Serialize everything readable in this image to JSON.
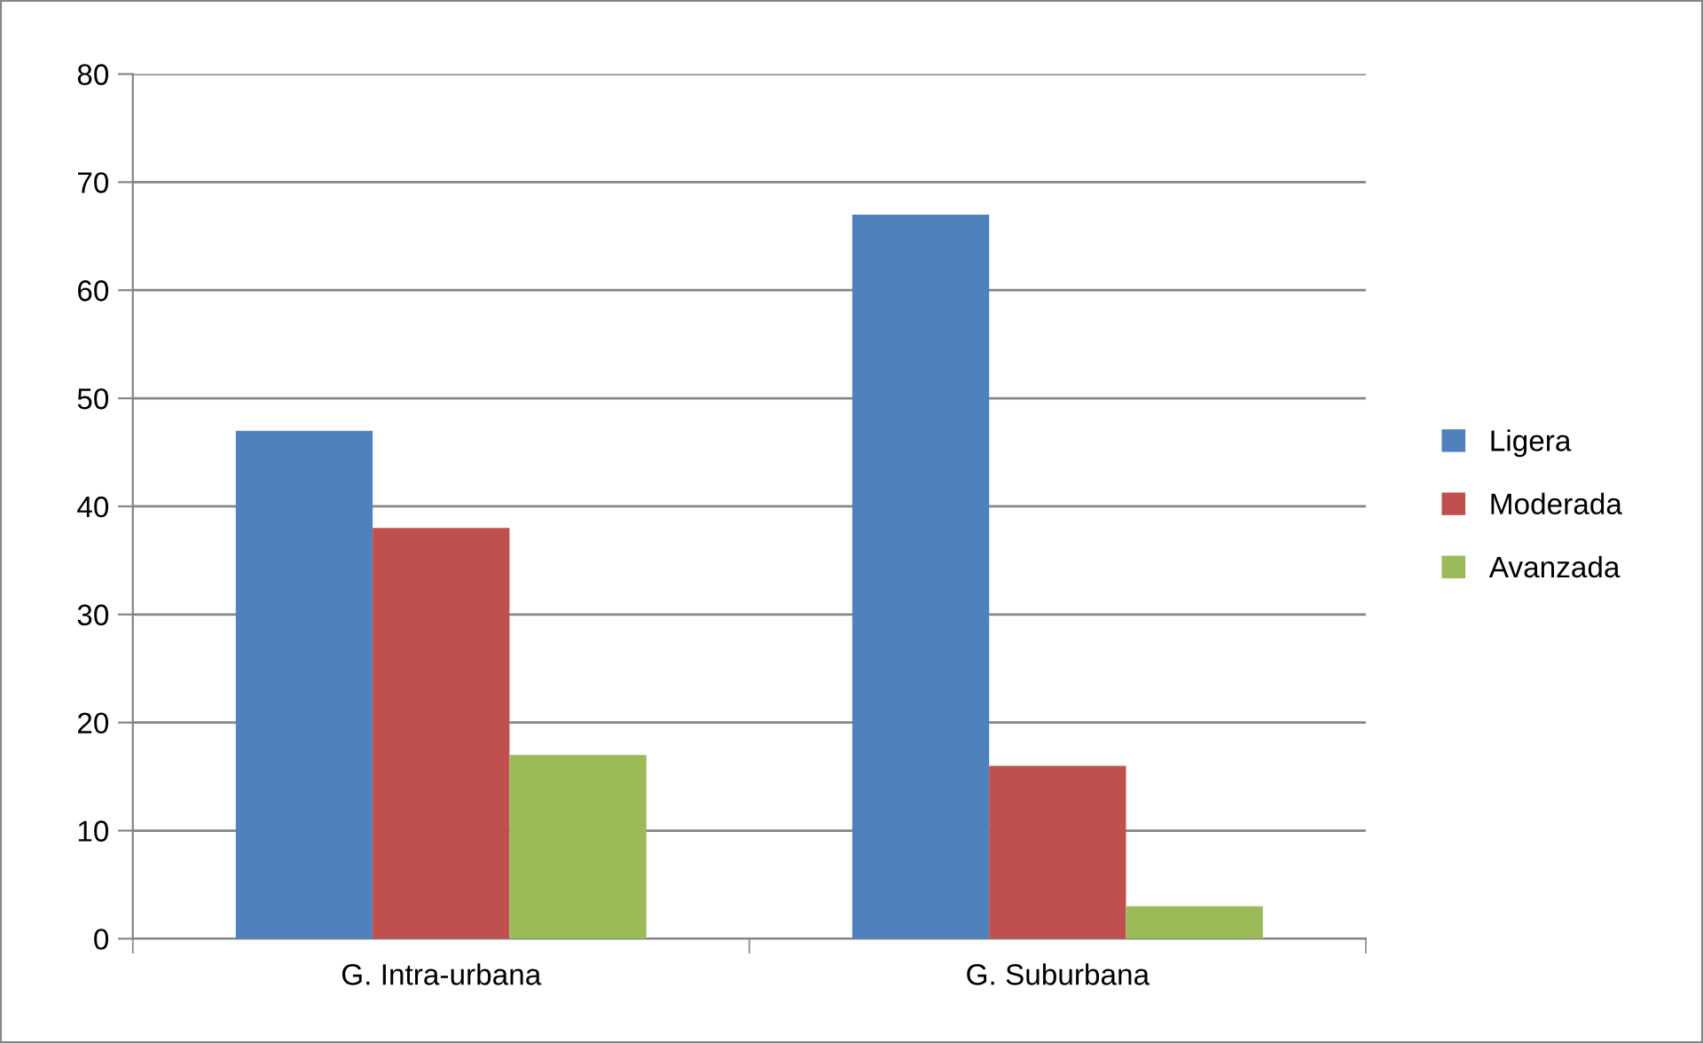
{
  "chart_data": {
    "type": "bar",
    "categories": [
      "G. Intra-urbana",
      "G. Suburbana"
    ],
    "series": [
      {
        "name": "Ligera",
        "color": "#4f81bd",
        "values": [
          47,
          67
        ]
      },
      {
        "name": "Moderada",
        "color": "#c0504d",
        "values": [
          38,
          16
        ]
      },
      {
        "name": "Avanzada",
        "color": "#9bbb59",
        "values": [
          17,
          3
        ]
      }
    ],
    "ylim": [
      0,
      80
    ],
    "yticks": [
      0,
      10,
      20,
      30,
      40,
      50,
      60,
      70,
      80
    ],
    "grid": "y",
    "legend": "right"
  }
}
